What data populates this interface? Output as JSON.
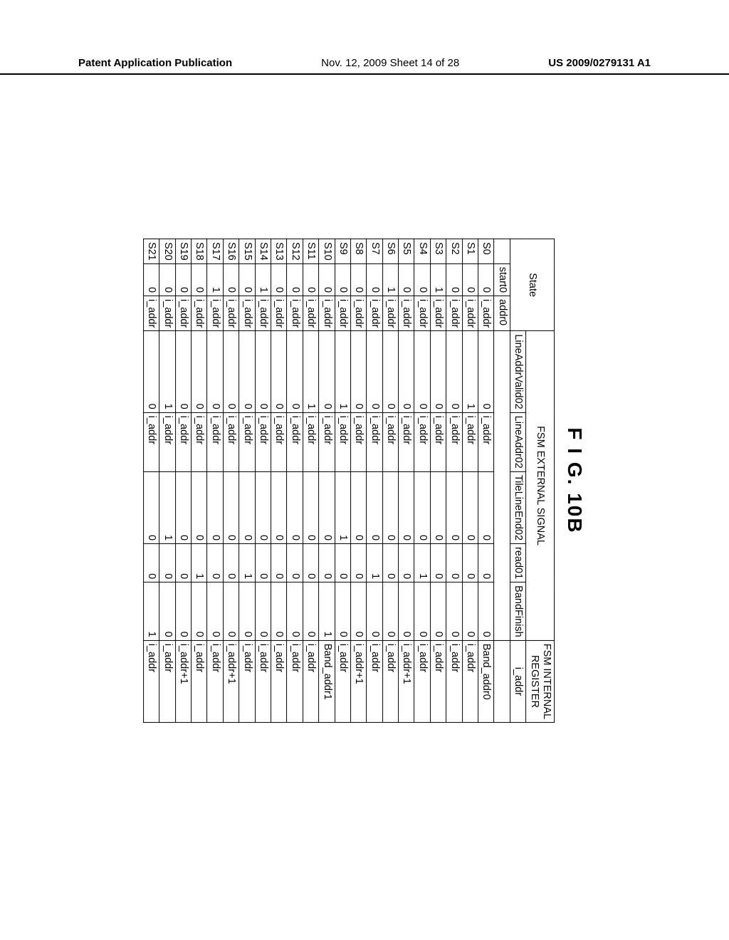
{
  "header": {
    "left": "Patent Application Publication",
    "mid": "Nov. 12, 2009  Sheet 14 of 28",
    "right": "US 2009/0279131 A1"
  },
  "figure": {
    "title": "F I G.  10B",
    "group_headers": {
      "state": "State",
      "external": "FSM EXTERNAL SIGNAL",
      "internal_l1": "FSM INTERNAL",
      "internal_l2": "REGISTER"
    },
    "columns": {
      "start0": "start0",
      "addr0": "addr0",
      "lineAddrValid02": "LineAddrValid02",
      "lineAddr02": "LineAddr02",
      "tileLineEnd02": "TileLineEnd02",
      "read01": "read01",
      "bandFinish": "BandFinish",
      "i_addr": "i_addr"
    },
    "rows": [
      {
        "state": "S0",
        "start0": "0",
        "addr0": "i_addr",
        "lav": "0",
        "la": "i_addr",
        "tle": "0",
        "r01": "0",
        "bf": "0",
        "ia": "Band_addr0"
      },
      {
        "state": "S1",
        "start0": "0",
        "addr0": "i_addr",
        "lav": "1",
        "la": "i_addr",
        "tle": "0",
        "r01": "0",
        "bf": "0",
        "ia": "i_addr"
      },
      {
        "state": "S2",
        "start0": "0",
        "addr0": "i_addr",
        "lav": "0",
        "la": "i_addr",
        "tle": "0",
        "r01": "0",
        "bf": "0",
        "ia": "i_addr"
      },
      {
        "state": "S3",
        "start0": "1",
        "addr0": "i_addr",
        "lav": "0",
        "la": "i_addr",
        "tle": "0",
        "r01": "0",
        "bf": "0",
        "ia": "i_addr"
      },
      {
        "state": "S4",
        "start0": "0",
        "addr0": "i_addr",
        "lav": "0",
        "la": "i_addr",
        "tle": "0",
        "r01": "1",
        "bf": "0",
        "ia": "i_addr"
      },
      {
        "state": "S5",
        "start0": "0",
        "addr0": "i_addr",
        "lav": "0",
        "la": "i_addr",
        "tle": "0",
        "r01": "0",
        "bf": "0",
        "ia": "i_addr+1"
      },
      {
        "state": "S6",
        "start0": "1",
        "addr0": "i_addr",
        "lav": "0",
        "la": "i_addr",
        "tle": "0",
        "r01": "0",
        "bf": "0",
        "ia": "i_addr"
      },
      {
        "state": "S7",
        "start0": "0",
        "addr0": "i_addr",
        "lav": "0",
        "la": "i_addr",
        "tle": "0",
        "r01": "1",
        "bf": "0",
        "ia": "i_addr"
      },
      {
        "state": "S8",
        "start0": "0",
        "addr0": "i_addr",
        "lav": "0",
        "la": "i_addr",
        "tle": "0",
        "r01": "0",
        "bf": "0",
        "ia": "i_addr+1"
      },
      {
        "state": "S9",
        "start0": "0",
        "addr0": "i_addr",
        "lav": "1",
        "la": "i_addr",
        "tle": "1",
        "r01": "0",
        "bf": "0",
        "ia": "i_addr"
      },
      {
        "state": "S10",
        "start0": "0",
        "addr0": "i_addr",
        "lav": "0",
        "la": "i_addr",
        "tle": "0",
        "r01": "0",
        "bf": "1",
        "ia": "Band_addr1"
      },
      {
        "state": "S11",
        "start0": "0",
        "addr0": "i_addr",
        "lav": "1",
        "la": "i_addr",
        "tle": "0",
        "r01": "0",
        "bf": "0",
        "ia": "i_addr"
      },
      {
        "state": "S12",
        "start0": "0",
        "addr0": "i_addr",
        "lav": "0",
        "la": "i_addr",
        "tle": "0",
        "r01": "0",
        "bf": "0",
        "ia": "i_addr"
      },
      {
        "state": "S13",
        "start0": "0",
        "addr0": "i_addr",
        "lav": "0",
        "la": "i_addr",
        "tle": "0",
        "r01": "0",
        "bf": "0",
        "ia": "i_addr"
      },
      {
        "state": "S14",
        "start0": "1",
        "addr0": "i_addr",
        "lav": "0",
        "la": "i_addr",
        "tle": "0",
        "r01": "0",
        "bf": "0",
        "ia": "i_addr"
      },
      {
        "state": "S15",
        "start0": "0",
        "addr0": "i_addr",
        "lav": "0",
        "la": "i_addr",
        "tle": "0",
        "r01": "1",
        "bf": "0",
        "ia": "i_addr"
      },
      {
        "state": "S16",
        "start0": "0",
        "addr0": "i_addr",
        "lav": "0",
        "la": "i_addr",
        "tle": "0",
        "r01": "0",
        "bf": "0",
        "ia": "i_addr+1"
      },
      {
        "state": "S17",
        "start0": "1",
        "addr0": "i_addr",
        "lav": "0",
        "la": "i_addr",
        "tle": "0",
        "r01": "0",
        "bf": "0",
        "ia": "i_addr"
      },
      {
        "state": "S18",
        "start0": "0",
        "addr0": "i_addr",
        "lav": "0",
        "la": "i_addr",
        "tle": "0",
        "r01": "1",
        "bf": "0",
        "ia": "i_addr"
      },
      {
        "state": "S19",
        "start0": "0",
        "addr0": "i_addr",
        "lav": "0",
        "la": "i_addr",
        "tle": "0",
        "r01": "0",
        "bf": "0",
        "ia": "i_addr+1"
      },
      {
        "state": "S20",
        "start0": "0",
        "addr0": "i_addr",
        "lav": "1",
        "la": "i_addr",
        "tle": "1",
        "r01": "0",
        "bf": "0",
        "ia": "i_addr"
      },
      {
        "state": "S21",
        "start0": "0",
        "addr0": "i_addr",
        "lav": "0",
        "la": "i_addr",
        "tle": "0",
        "r01": "0",
        "bf": "1",
        "ia": "i_addr"
      }
    ]
  }
}
